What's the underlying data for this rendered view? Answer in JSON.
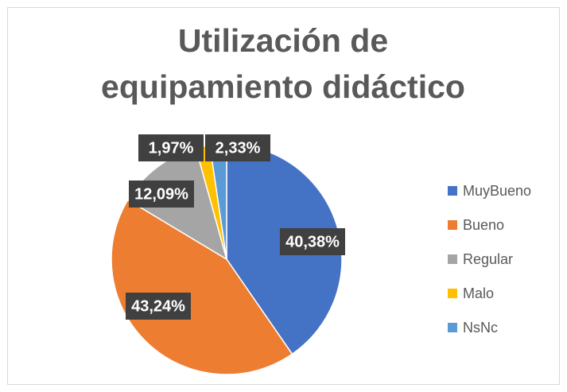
{
  "chart_data": {
    "type": "pie",
    "title": "Utilización de equipamiento didáctico",
    "categories": [
      "MuyBueno",
      "Bueno",
      "Regular",
      "Malo",
      "NsNc"
    ],
    "values": [
      40.38,
      43.24,
      12.09,
      1.97,
      2.33
    ],
    "value_labels": [
      "40,38%",
      "43,24%",
      "12,09%",
      "1,97%",
      "2,33%"
    ],
    "colors": [
      "#4472c4",
      "#ed7d31",
      "#a5a5a5",
      "#ffc000",
      "#5b9bd5"
    ],
    "legend": "right"
  }
}
